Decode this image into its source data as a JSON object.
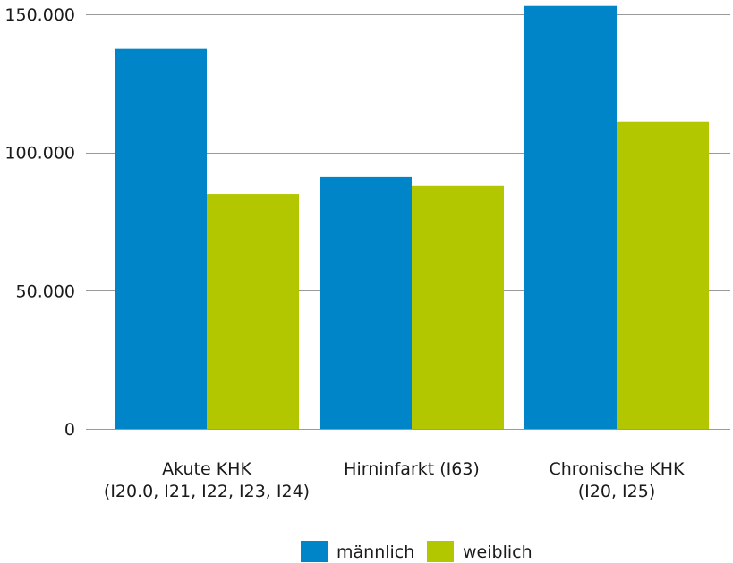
{
  "chart_data": {
    "type": "bar",
    "title": "",
    "xlabel": "",
    "ylabel": "",
    "categories": [
      [
        "Akute KHK",
        "(I20.0, I21, I22, I23, I24)"
      ],
      [
        "Hirninfarkt (I63)"
      ],
      [
        "Chronische KHK",
        "(I20, I25)"
      ]
    ],
    "series": [
      {
        "name": "männlich",
        "color": "#0086c8",
        "values": [
          137500,
          91200,
          153000
        ]
      },
      {
        "name": "weiblich",
        "color": "#b3c700",
        "values": [
          85000,
          88000,
          111300
        ]
      }
    ],
    "ylim": [
      0,
      150000
    ],
    "yticks": [
      0,
      50000,
      100000,
      150000
    ],
    "ytick_labels": [
      "0",
      "50.000",
      "100.000",
      "150.000"
    ],
    "grid": "horizontal",
    "legend_position": "bottom-center"
  }
}
